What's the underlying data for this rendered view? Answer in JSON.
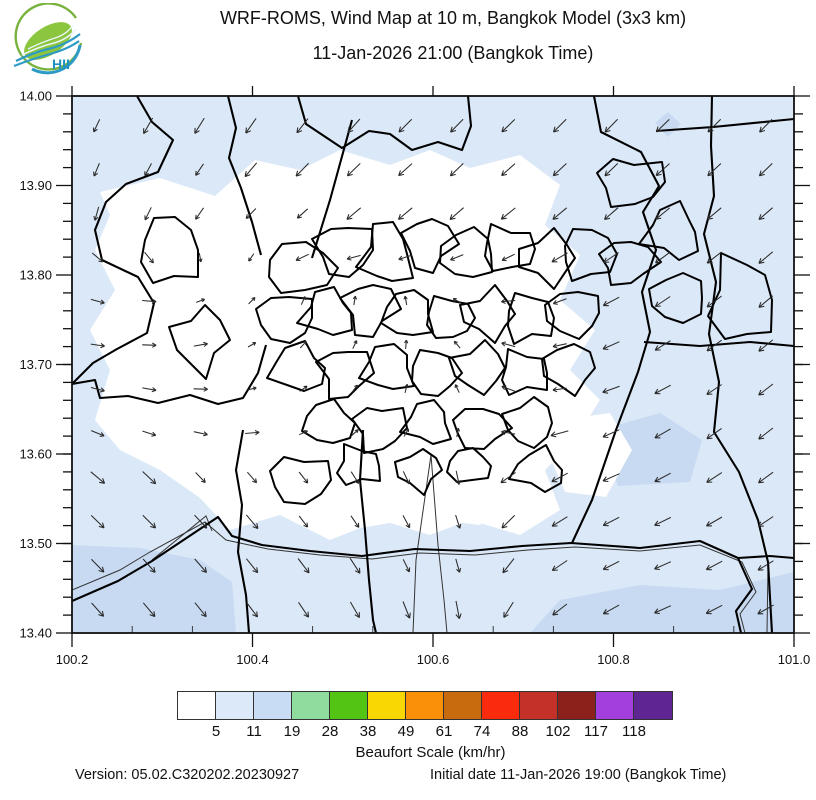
{
  "header": {
    "logo_text": "HII",
    "title_line1": "WRF-ROMS, Wind Map at 10 m, Bangkok Model (3x3 km)",
    "title_line2": "11-Jan-2026 21:00 (Bangkok Time)"
  },
  "map": {
    "y_axis_ticks": [
      "14.00",
      "13.90",
      "13.80",
      "13.70",
      "13.60",
      "13.50",
      "13.40"
    ],
    "x_axis_ticks": [
      "100.2",
      "100.4",
      "100.6",
      "100.8",
      "101.0"
    ],
    "colors": {
      "calm_fill": "#dbe8f7",
      "breeze_fill": "#c7daf2",
      "land_white": "#ffffff",
      "boundary": "#000000",
      "arrow": "#2b2b2b"
    },
    "wind_grid": {
      "angles_deg_from_north": [
        [
          205,
          210,
          212,
          215,
          218,
          222,
          225,
          224,
          226,
          225,
          224,
          226,
          225,
          224
        ],
        [
          202,
          208,
          214,
          220,
          224,
          226,
          228,
          226,
          228,
          227,
          226,
          228,
          227,
          226
        ],
        [
          196,
          206,
          215,
          224,
          228,
          230,
          230,
          229,
          231,
          230,
          229,
          231,
          230,
          229
        ],
        [
          130,
          140,
          170,
          215,
          245,
          255,
          252,
          248,
          244,
          240,
          236,
          234,
          232,
          230
        ],
        [
          105,
          95,
          70,
          45,
          25,
          10,
          350,
          300,
          265,
          250,
          242,
          236,
          233,
          230
        ],
        [
          98,
          92,
          80,
          60,
          42,
          25,
          5,
          320,
          285,
          258,
          246,
          238,
          234,
          231
        ],
        [
          104,
          100,
          92,
          75,
          55,
          38,
          15,
          335,
          290,
          262,
          250,
          242,
          236,
          232
        ],
        [
          112,
          108,
          102,
          85,
          65,
          48,
          30,
          10,
          280,
          255,
          246,
          240,
          235,
          232
        ],
        [
          130,
          133,
          136,
          139,
          142,
          148,
          155,
          168,
          235,
          242,
          246,
          242,
          237,
          234
        ],
        [
          134,
          135,
          137,
          140,
          143,
          146,
          152,
          162,
          225,
          238,
          243,
          244,
          240,
          236
        ],
        [
          136,
          138,
          139,
          141,
          143,
          147,
          154,
          164,
          218,
          236,
          243,
          246,
          242,
          239
        ],
        [
          138,
          140,
          141,
          143,
          146,
          150,
          158,
          169,
          212,
          232,
          241,
          246,
          243,
          241
        ]
      ],
      "speed_class": [
        [
          1,
          2,
          2,
          2,
          2,
          2,
          2,
          2,
          2,
          2,
          2,
          2,
          2,
          2
        ],
        [
          1,
          1,
          1,
          2,
          2,
          2,
          2,
          2,
          2,
          2,
          2,
          2,
          2,
          2
        ],
        [
          1,
          1,
          1,
          1,
          1,
          2,
          2,
          2,
          2,
          2,
          2,
          2,
          2,
          2
        ],
        [
          1,
          1,
          0,
          0,
          1,
          1,
          1,
          1,
          1,
          2,
          2,
          2,
          2,
          2
        ],
        [
          1,
          1,
          0,
          0,
          0,
          0,
          0,
          0,
          1,
          1,
          2,
          2,
          2,
          2
        ],
        [
          1,
          1,
          1,
          0,
          0,
          0,
          0,
          0,
          1,
          1,
          2,
          2,
          2,
          2
        ],
        [
          1,
          1,
          1,
          0,
          0,
          0,
          0,
          0,
          1,
          1,
          2,
          2,
          2,
          2
        ],
        [
          1,
          1,
          1,
          1,
          0,
          0,
          0,
          0,
          1,
          2,
          2,
          2,
          2,
          2
        ],
        [
          2,
          2,
          1,
          1,
          1,
          1,
          1,
          1,
          2,
          2,
          2,
          2,
          2,
          2
        ],
        [
          2,
          2,
          2,
          2,
          1,
          1,
          1,
          1,
          2,
          2,
          2,
          2,
          2,
          2
        ],
        [
          2,
          2,
          2,
          2,
          2,
          2,
          1,
          1,
          2,
          2,
          2,
          2,
          2,
          2
        ],
        [
          2,
          2,
          2,
          2,
          2,
          2,
          2,
          2,
          2,
          2,
          2,
          2,
          2,
          2
        ]
      ]
    }
  },
  "legend": {
    "labels": [
      "5",
      "11",
      "19",
      "28",
      "38",
      "49",
      "61",
      "74",
      "88",
      "102",
      "117",
      "118"
    ],
    "colors": [
      "#ffffff",
      "#dce9f8",
      "#c8dcf4",
      "#90dc9e",
      "#53c413",
      "#f8d703",
      "#fa9007",
      "#c76b0e",
      "#fa2b0d",
      "#c43128",
      "#8c201a",
      "#a33fdd",
      "#5f2593"
    ],
    "caption": "Beaufort Scale (km/hr)"
  },
  "footer": {
    "version": "Version: 05.02.C320202.20230927",
    "initial_date": "Initial date 11-Jan-2026 19:00 (Bangkok Time)"
  }
}
